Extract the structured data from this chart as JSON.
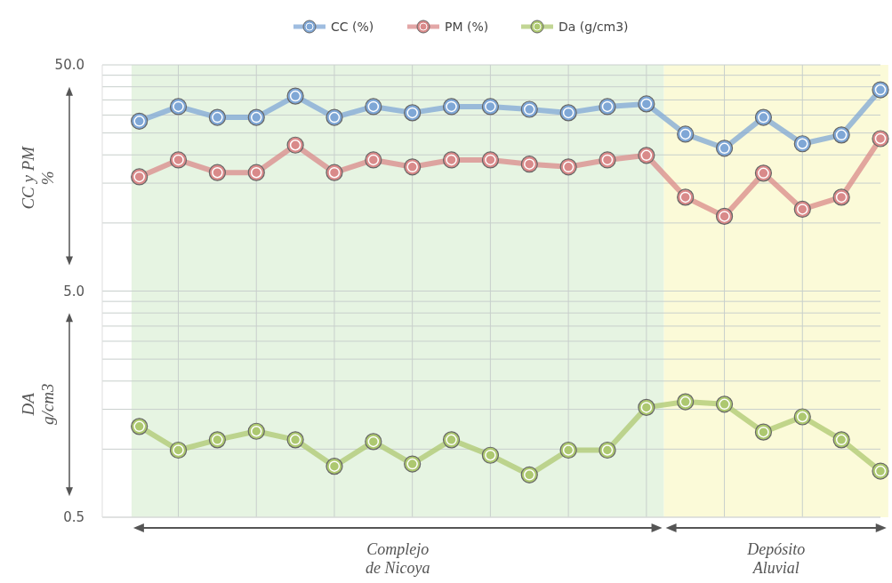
{
  "chart_data": {
    "type": "line",
    "categories": [
      null,
      null,
      null,
      null,
      null,
      null,
      null,
      null,
      null,
      null,
      null,
      null,
      null,
      null,
      null,
      null,
      null,
      null,
      null,
      null
    ],
    "ylim": [
      0.5,
      50
    ],
    "yticks": [
      {
        "value": 0.5,
        "label": "0.5"
      },
      {
        "value": 1,
        "label": null
      },
      {
        "value": 1.5,
        "label": null
      },
      {
        "value": 2,
        "label": null
      },
      {
        "value": 2.5,
        "label": null
      },
      {
        "value": 3,
        "label": null
      },
      {
        "value": 3.5,
        "label": null
      },
      {
        "value": 4,
        "label": null
      },
      {
        "value": 4.5,
        "label": null
      },
      {
        "value": 5,
        "label": "5.0"
      },
      {
        "value": 10,
        "label": null
      },
      {
        "value": 15,
        "label": null
      },
      {
        "value": 20,
        "label": null
      },
      {
        "value": 25,
        "label": null
      },
      {
        "value": 30,
        "label": null
      },
      {
        "value": 35,
        "label": null
      },
      {
        "value": 40,
        "label": null
      },
      {
        "value": 45,
        "label": null
      },
      {
        "value": 50,
        "label": "50.0"
      }
    ],
    "log": "y",
    "grid": true,
    "legend": "top",
    "marker": "circle",
    "ylabel": "CC y PM\n%",
    "annotations": [
      "DA\ng/cm3",
      "Complejo\nde Nicoya",
      "Depósito\nAluvial"
    ],
    "series": [
      {
        "name": "CC (%)",
        "color": "#7fa7d6",
        "values": [
          28.2,
          32.7,
          29.3,
          29.3,
          36.4,
          29.3,
          32.7,
          30.7,
          32.7,
          32.7,
          31.8,
          30.7,
          32.7,
          33.6,
          24.7,
          21.4,
          29.3,
          22.4,
          24.5,
          38.8
        ]
      },
      {
        "name": "PM (%)",
        "color": "#d98a8a",
        "values": [
          16.0,
          19.0,
          16.7,
          16.7,
          22.1,
          16.7,
          19.0,
          17.7,
          19.0,
          19.0,
          18.2,
          17.7,
          19.0,
          19.9,
          13.0,
          10.7,
          16.6,
          11.5,
          13.0,
          23.6
        ]
      },
      {
        "name": "Da (g/cm3)",
        "color": "#adc870",
        "values": [
          1.26,
          0.99,
          1.1,
          1.2,
          1.1,
          0.84,
          1.08,
          0.86,
          1.1,
          0.94,
          0.77,
          0.99,
          0.99,
          1.53,
          1.62,
          1.58,
          1.19,
          1.39,
          1.1,
          0.8
        ]
      }
    ]
  }
}
